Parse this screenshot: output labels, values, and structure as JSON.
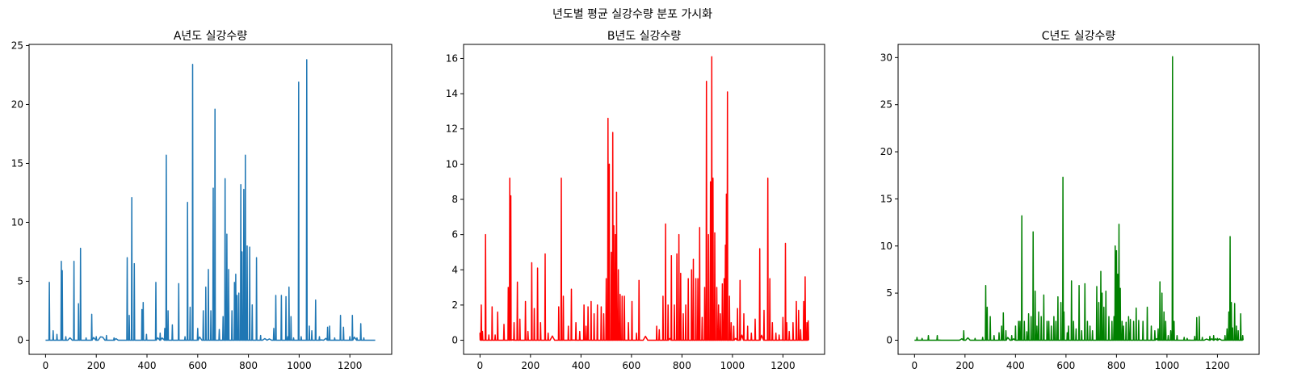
{
  "figure": {
    "suptitle": "년도별 평균 실강수량 분포 가시화"
  },
  "chart_data": [
    {
      "type": "line",
      "title": "A년도 실강수량",
      "xlabel": "",
      "ylabel": "",
      "color": "#1f77b4",
      "xlim": [
        -65,
        1365
      ],
      "ylim": [
        -1.2,
        25.1
      ],
      "xticks": [
        0,
        200,
        400,
        600,
        800,
        1000,
        1200
      ],
      "yticks": [
        0,
        5,
        10,
        15,
        20,
        25
      ],
      "grid": false,
      "x_extent": [
        0,
        1300
      ],
      "peaks": [
        [
          15,
          4.9
        ],
        [
          30,
          0.8
        ],
        [
          45,
          0.5
        ],
        [
          62,
          6.7
        ],
        [
          66,
          5.9
        ],
        [
          80,
          0.3
        ],
        [
          112,
          6.7
        ],
        [
          130,
          3.1
        ],
        [
          138,
          7.8
        ],
        [
          160,
          0.2
        ],
        [
          182,
          2.2
        ],
        [
          200,
          0.3
        ],
        [
          240,
          0.4
        ],
        [
          270,
          0.2
        ],
        [
          322,
          7.0
        ],
        [
          330,
          2.1
        ],
        [
          340,
          12.1
        ],
        [
          350,
          6.5
        ],
        [
          380,
          2.6
        ],
        [
          385,
          3.2
        ],
        [
          398,
          0.5
        ],
        [
          435,
          4.9
        ],
        [
          452,
          0.6
        ],
        [
          470,
          1.0
        ],
        [
          476,
          15.7
        ],
        [
          483,
          2.5
        ],
        [
          500,
          1.3
        ],
        [
          525,
          4.8
        ],
        [
          550,
          0.3
        ],
        [
          560,
          11.7
        ],
        [
          570,
          2.8
        ],
        [
          580,
          23.4
        ],
        [
          600,
          1.0
        ],
        [
          622,
          2.5
        ],
        [
          632,
          4.5
        ],
        [
          642,
          6.0
        ],
        [
          652,
          2.5
        ],
        [
          661,
          12.9
        ],
        [
          668,
          19.6
        ],
        [
          685,
          0.9
        ],
        [
          700,
          2.0
        ],
        [
          708,
          13.7
        ],
        [
          715,
          9.0
        ],
        [
          722,
          6.0
        ],
        [
          735,
          2.5
        ],
        [
          745,
          4.9
        ],
        [
          750,
          5.6
        ],
        [
          755,
          3.8
        ],
        [
          762,
          4.0
        ],
        [
          770,
          13.2
        ],
        [
          775,
          7.5
        ],
        [
          782,
          12.8
        ],
        [
          788,
          15.7
        ],
        [
          795,
          8.0
        ],
        [
          805,
          7.9
        ],
        [
          815,
          3.0
        ],
        [
          832,
          7.0
        ],
        [
          848,
          0.4
        ],
        [
          900,
          1.0
        ],
        [
          908,
          3.8
        ],
        [
          930,
          3.8
        ],
        [
          948,
          3.7
        ],
        [
          955,
          0.3
        ],
        [
          960,
          4.5
        ],
        [
          968,
          2.0
        ],
        [
          978,
          0.2
        ],
        [
          998,
          21.9
        ],
        [
          1008,
          0.3
        ],
        [
          1030,
          23.8
        ],
        [
          1040,
          1.2
        ],
        [
          1050,
          0.8
        ],
        [
          1065,
          3.4
        ],
        [
          1080,
          0.3
        ],
        [
          1112,
          1.1
        ],
        [
          1120,
          1.2
        ],
        [
          1140,
          0.2
        ],
        [
          1163,
          2.1
        ],
        [
          1175,
          1.1
        ],
        [
          1200,
          0.3
        ],
        [
          1210,
          2.1
        ],
        [
          1228,
          0.2
        ],
        [
          1243,
          1.4
        ],
        [
          1255,
          0.2
        ]
      ]
    },
    {
      "type": "line",
      "title": "B년도 실강수량",
      "xlabel": "",
      "ylabel": "",
      "color": "#ff0000",
      "xlim": [
        -65,
        1365
      ],
      "ylim": [
        -0.8,
        16.8
      ],
      "xticks": [
        0,
        200,
        400,
        600,
        800,
        1000,
        1200
      ],
      "yticks": [
        0,
        2,
        4,
        6,
        8,
        10,
        12,
        14,
        16
      ],
      "grid": false,
      "x_extent": [
        0,
        1300
      ],
      "peaks": [
        [
          0,
          0.4
        ],
        [
          5,
          2.0
        ],
        [
          10,
          0.5
        ],
        [
          22,
          6.0
        ],
        [
          35,
          0.3
        ],
        [
          48,
          1.9
        ],
        [
          60,
          0.3
        ],
        [
          70,
          1.6
        ],
        [
          95,
          0.9
        ],
        [
          112,
          3.0
        ],
        [
          118,
          9.2
        ],
        [
          122,
          8.2
        ],
        [
          135,
          1.0
        ],
        [
          148,
          3.3
        ],
        [
          158,
          1.2
        ],
        [
          180,
          2.2
        ],
        [
          190,
          0.5
        ],
        [
          205,
          4.4
        ],
        [
          215,
          1.8
        ],
        [
          228,
          4.1
        ],
        [
          240,
          1.0
        ],
        [
          258,
          4.9
        ],
        [
          270,
          0.4
        ],
        [
          312,
          1.9
        ],
        [
          322,
          9.2
        ],
        [
          330,
          2.5
        ],
        [
          350,
          0.8
        ],
        [
          362,
          2.9
        ],
        [
          380,
          1.0
        ],
        [
          395,
          0.5
        ],
        [
          412,
          2.0
        ],
        [
          420,
          0.8
        ],
        [
          428,
          1.9
        ],
        [
          440,
          2.2
        ],
        [
          452,
          1.5
        ],
        [
          465,
          2.0
        ],
        [
          480,
          1.9
        ],
        [
          490,
          1.5
        ],
        [
          500,
          3.5
        ],
        [
          507,
          12.6
        ],
        [
          512,
          10.0
        ],
        [
          520,
          5.0
        ],
        [
          526,
          11.8
        ],
        [
          530,
          6.5
        ],
        [
          536,
          6.0
        ],
        [
          541,
          8.4
        ],
        [
          548,
          4.0
        ],
        [
          555,
          2.6
        ],
        [
          563,
          2.5
        ],
        [
          572,
          2.5
        ],
        [
          588,
          1.0
        ],
        [
          602,
          2.2
        ],
        [
          620,
          0.4
        ],
        [
          630,
          3.4
        ],
        [
          700,
          0.8
        ],
        [
          710,
          0.6
        ],
        [
          725,
          2.5
        ],
        [
          735,
          6.6
        ],
        [
          745,
          2.0
        ],
        [
          758,
          4.8
        ],
        [
          770,
          2.0
        ],
        [
          780,
          4.9
        ],
        [
          788,
          6.0
        ],
        [
          795,
          3.8
        ],
        [
          805,
          1.5
        ],
        [
          815,
          2.0
        ],
        [
          825,
          3.5
        ],
        [
          838,
          4.0
        ],
        [
          845,
          4.6
        ],
        [
          855,
          3.5
        ],
        [
          863,
          3.5
        ],
        [
          870,
          6.4
        ],
        [
          880,
          1.3
        ],
        [
          890,
          3.0
        ],
        [
          897,
          14.7
        ],
        [
          905,
          6.0
        ],
        [
          913,
          9.0
        ],
        [
          918,
          16.1
        ],
        [
          923,
          9.2
        ],
        [
          930,
          6.1
        ],
        [
          938,
          3.0
        ],
        [
          945,
          2.0
        ],
        [
          952,
          1.5
        ],
        [
          960,
          3.2
        ],
        [
          967,
          3.5
        ],
        [
          972,
          5.4
        ],
        [
          976,
          8.3
        ],
        [
          980,
          14.1
        ],
        [
          988,
          2.5
        ],
        [
          995,
          1.0
        ],
        [
          1005,
          0.8
        ],
        [
          1020,
          1.8
        ],
        [
          1030,
          3.4
        ],
        [
          1045,
          1.5
        ],
        [
          1060,
          0.8
        ],
        [
          1075,
          0.4
        ],
        [
          1090,
          1.2
        ],
        [
          1108,
          5.2
        ],
        [
          1125,
          1.7
        ],
        [
          1140,
          9.2
        ],
        [
          1148,
          3.5
        ],
        [
          1158,
          1.0
        ],
        [
          1172,
          0.4
        ],
        [
          1185,
          0.3
        ],
        [
          1200,
          1.3
        ],
        [
          1210,
          5.5
        ],
        [
          1215,
          1.0
        ],
        [
          1225,
          0.5
        ],
        [
          1240,
          1.0
        ],
        [
          1253,
          2.2
        ],
        [
          1262,
          1.7
        ],
        [
          1270,
          0.6
        ],
        [
          1282,
          2.2
        ],
        [
          1288,
          3.6
        ],
        [
          1295,
          1.0
        ],
        [
          1300,
          1.1
        ]
      ]
    },
    {
      "type": "line",
      "title": "C년도 실강수량",
      "xlabel": "",
      "ylabel": "",
      "color": "#008000",
      "xlim": [
        -65,
        1365
      ],
      "ylim": [
        -1.5,
        31.4
      ],
      "xticks": [
        0,
        200,
        400,
        600,
        800,
        1000,
        1200
      ],
      "yticks": [
        0,
        5,
        10,
        15,
        20,
        25,
        30
      ],
      "grid": false,
      "x_extent": [
        0,
        1300
      ],
      "peaks": [
        [
          10,
          0.3
        ],
        [
          30,
          0.2
        ],
        [
          55,
          0.5
        ],
        [
          90,
          0.5
        ],
        [
          195,
          1.0
        ],
        [
          240,
          0.2
        ],
        [
          270,
          0.3
        ],
        [
          282,
          5.8
        ],
        [
          288,
          3.5
        ],
        [
          300,
          2.5
        ],
        [
          315,
          0.5
        ],
        [
          335,
          0.8
        ],
        [
          345,
          1.5
        ],
        [
          352,
          2.9
        ],
        [
          362,
          1.0
        ],
        [
          385,
          0.5
        ],
        [
          400,
          1.5
        ],
        [
          412,
          2.0
        ],
        [
          418,
          2.0
        ],
        [
          425,
          13.2
        ],
        [
          435,
          2.0
        ],
        [
          445,
          0.9
        ],
        [
          452,
          2.8
        ],
        [
          462,
          2.5
        ],
        [
          470,
          11.5
        ],
        [
          478,
          5.2
        ],
        [
          485,
          1.5
        ],
        [
          492,
          3.0
        ],
        [
          502,
          2.5
        ],
        [
          512,
          4.8
        ],
        [
          525,
          2.0
        ],
        [
          532,
          2.0
        ],
        [
          542,
          1.5
        ],
        [
          552,
          2.5
        ],
        [
          560,
          2.0
        ],
        [
          568,
          4.6
        ],
        [
          580,
          4.0
        ],
        [
          588,
          17.3
        ],
        [
          592,
          3.0
        ],
        [
          605,
          0.8
        ],
        [
          610,
          1.5
        ],
        [
          622,
          6.3
        ],
        [
          630,
          2.0
        ],
        [
          640,
          1.2
        ],
        [
          652,
          5.8
        ],
        [
          662,
          1.0
        ],
        [
          675,
          6.0
        ],
        [
          685,
          2.0
        ],
        [
          695,
          1.5
        ],
        [
          705,
          1.0
        ],
        [
          722,
          5.7
        ],
        [
          730,
          4.0
        ],
        [
          738,
          7.3
        ],
        [
          743,
          5.0
        ],
        [
          750,
          3.5
        ],
        [
          758,
          5.2
        ],
        [
          770,
          2.5
        ],
        [
          782,
          2.0
        ],
        [
          790,
          2.5
        ],
        [
          795,
          10.0
        ],
        [
          800,
          9.5
        ],
        [
          805,
          7.0
        ],
        [
          810,
          12.3
        ],
        [
          815,
          5.5
        ],
        [
          822,
          2.0
        ],
        [
          828,
          1.5
        ],
        [
          838,
          1.9
        ],
        [
          848,
          2.5
        ],
        [
          855,
          2.2
        ],
        [
          868,
          2.0
        ],
        [
          878,
          3.4
        ],
        [
          888,
          2.1
        ],
        [
          905,
          2.0
        ],
        [
          922,
          3.5
        ],
        [
          938,
          1.5
        ],
        [
          952,
          1.0
        ],
        [
          965,
          1.2
        ],
        [
          972,
          6.2
        ],
        [
          980,
          5.0
        ],
        [
          988,
          3.0
        ],
        [
          995,
          2.0
        ],
        [
          1005,
          0.5
        ],
        [
          1015,
          1.0
        ],
        [
          1022,
          30.1
        ],
        [
          1028,
          2.0
        ],
        [
          1040,
          0.5
        ],
        [
          1068,
          0.3
        ],
        [
          1080,
          0.2
        ],
        [
          1110,
          0.4
        ],
        [
          1118,
          2.4
        ],
        [
          1128,
          2.5
        ],
        [
          1140,
          0.3
        ],
        [
          1170,
          0.4
        ],
        [
          1185,
          0.5
        ],
        [
          1200,
          0.2
        ],
        [
          1230,
          0.5
        ],
        [
          1238,
          1.2
        ],
        [
          1245,
          3.0
        ],
        [
          1250,
          11.0
        ],
        [
          1255,
          4.0
        ],
        [
          1260,
          1.3
        ],
        [
          1268,
          3.9
        ],
        [
          1275,
          1.5
        ],
        [
          1282,
          1.0
        ],
        [
          1292,
          2.8
        ],
        [
          1300,
          0.5
        ]
      ]
    }
  ]
}
